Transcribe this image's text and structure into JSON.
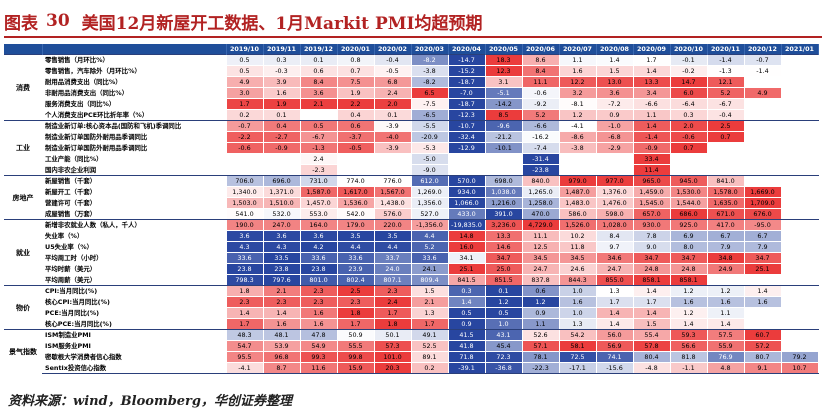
{
  "title": {
    "prefix": "图表",
    "number": "30",
    "text": "美国12月新屋开工数据、1月Markit PMI均超预期"
  },
  "colors": {
    "header": "#1f4e9a",
    "accent": "#b22222"
  },
  "columns": [
    "2019/10",
    "2019/11",
    "2019/12",
    "2020/01",
    "2020/02",
    "2020/03",
    "2020/04",
    "2020/05",
    "2020/06",
    "2020/07",
    "2020/08",
    "2020/09",
    "2020/10",
    "2020/11",
    "2020/12",
    "2021/01"
  ],
  "groups": [
    {
      "name": "消费",
      "rows": [
        {
          "label": "零售销售（月环比%）",
          "values": [
            "0.5",
            "0.3",
            "0.1",
            "0.8",
            "-0.4",
            "-8.2",
            "-14.7",
            "18.3",
            "8.6",
            "1.1",
            "1.4",
            "1.7",
            "-0.1",
            "-1.4",
            "-0.7",
            ""
          ]
        },
        {
          "label": "零售销售，汽车除外（月环比%）",
          "values": [
            "0.5",
            "-0.3",
            "0.6",
            "0.7",
            "-0.5",
            "-3.8",
            "-15.2",
            "12.3",
            "8.4",
            "1.6",
            "1.5",
            "1.4",
            "-0.2",
            "-1.3",
            "-1.4",
            ""
          ]
        },
        {
          "label": "耐用品消费支出（同比%）",
          "values": [
            "4.9",
            "3.9",
            "8.4",
            "7.5",
            "6.8",
            "-8.2",
            "-18.7",
            "3.1",
            "11.1",
            "12.2",
            "13.0",
            "13.3",
            "14.7",
            "12.1",
            "",
            ""
          ]
        },
        {
          "label": "非耐用品消费支出（同比%）",
          "values": [
            "3.0",
            "1.6",
            "3.6",
            "1.9",
            "2.4",
            "6.5",
            "-7.0",
            "-5.1",
            "-0.6",
            "3.2",
            "3.6",
            "3.4",
            "6.0",
            "5.2",
            "4.9",
            ""
          ]
        },
        {
          "label": "服务消费支出（同比%）",
          "values": [
            "1.7",
            "1.9",
            "2.1",
            "2.2",
            "2.0",
            "-7.5",
            "-18.7",
            "-14.2",
            "-9.2",
            "-8.1",
            "-7.2",
            "-6.6",
            "-6.4",
            "-6.7",
            "",
            ""
          ]
        },
        {
          "label": "个人消费支出PCE环比折年率（%）",
          "values": [
            "0.2",
            "0.1",
            "",
            "0.4",
            "0.1",
            "-6.5",
            "-12.3",
            "8.5",
            "5.2",
            "1.2",
            "0.9",
            "1.1",
            "0.3",
            "-0.4",
            "",
            ""
          ]
        }
      ]
    },
    {
      "name": "工业",
      "rows": [
        {
          "label": "制造业新订单:核心资本品(国防和飞机)季调同比",
          "values": [
            "-0.7",
            "0.4",
            "0.5",
            "0.6",
            "-3.9",
            "-5.5",
            "-10.7",
            "-9.6",
            "-6.6",
            "-4.1",
            "-1.0",
            "1.4",
            "2.0",
            "2.5",
            "",
            ""
          ]
        },
        {
          "label": "制造业新订单国防外耐用品季调同比",
          "values": [
            "-2.2",
            "-2.7",
            "-6.7",
            "-3.7",
            "-4.0",
            "-20.9",
            "-32.4",
            "-21.2",
            "-16.2",
            "-8.6",
            "-6.8",
            "-1.4",
            "-0.6",
            "0.7",
            "",
            ""
          ]
        },
        {
          "label": "制造业新订单国防外耐用品季调同比",
          "values": [
            "-0.6",
            "-0.9",
            "-1.3",
            "-0.5",
            "-3.9",
            "-5.3",
            "-12.9",
            "-10.1",
            "-7.4",
            "-3.8",
            "-2.9",
            "-0.9",
            "0.7",
            "",
            "",
            ""
          ]
        },
        {
          "label": "工业产能（同比%）",
          "values": [
            "",
            "",
            "2.4",
            "",
            "",
            "-5.0",
            "",
            "",
            "-31.4",
            "",
            "",
            "33.4",
            "",
            "",
            "",
            ""
          ]
        },
        {
          "label": "国内非农企业利润",
          "values": [
            "",
            "",
            "-2.3",
            "",
            "",
            "-9.0",
            "",
            "",
            "-23.8",
            "",
            "",
            "11.4",
            "",
            "",
            "",
            ""
          ]
        }
      ]
    },
    {
      "name": "房地产",
      "rows": [
        {
          "label": "新屋销售（千套）",
          "values": [
            "706.0",
            "696.0",
            "731.0",
            "774.0",
            "776.0",
            "612.0",
            "570.0",
            "698.0",
            "840.0",
            "979.0",
            "977.0",
            "965.0",
            "945.0",
            "841.0",
            "",
            ""
          ]
        },
        {
          "label": "新屋开工（千套）",
          "values": [
            "1,340.0",
            "1,371.0",
            "1,587.0",
            "1,617.0",
            "1,567.0",
            "1,269.0",
            "934.0",
            "1,038.0",
            "1,265.0",
            "1,487.0",
            "1,376.0",
            "1,459.0",
            "1,530.0",
            "1,578.0",
            "1,669.0",
            ""
          ]
        },
        {
          "label": "营建许可（千套）",
          "values": [
            "1,503.0",
            "1,510.0",
            "1,457.0",
            "1,536.0",
            "1,438.0",
            "1,356.0",
            "1,066.0",
            "1,216.0",
            "1,258.0",
            "1,483.0",
            "1,476.0",
            "1,545.0",
            "1,544.0",
            "1,635.0",
            "1,709.0",
            ""
          ]
        },
        {
          "label": "成屋销售（万套）",
          "values": [
            "541.0",
            "532.0",
            "553.0",
            "542.0",
            "576.0",
            "527.0",
            "433.0",
            "391.0",
            "470.0",
            "586.0",
            "598.0",
            "657.0",
            "686.0",
            "671.0",
            "676.0",
            ""
          ]
        }
      ]
    },
    {
      "name": "就业",
      "rows": [
        {
          "label": "新增非农就业人数（私人，千人）",
          "values": [
            "190.0",
            "247.0",
            "164.0",
            "179.0",
            "220.0",
            "-1,356.0",
            "-19,835.0",
            "3,236.0",
            "4,729.0",
            "1,526.0",
            "1,028.0",
            "930.0",
            "925.0",
            "417.0",
            "-95.0",
            ""
          ]
        },
        {
          "label": "失业率（%）",
          "values": [
            "3.6",
            "3.6",
            "3.6",
            "3.5",
            "3.5",
            "4.4",
            "14.8",
            "13.3",
            "11.1",
            "10.2",
            "8.4",
            "7.8",
            "6.9",
            "6.7",
            "6.7",
            ""
          ]
        },
        {
          "label": "U5失业率（%）",
          "values": [
            "4.3",
            "4.3",
            "4.2",
            "4.4",
            "4.4",
            "5.2",
            "16.0",
            "14.6",
            "12.5",
            "11.8",
            "9.7",
            "9.0",
            "8.0",
            "7.9",
            "7.9",
            ""
          ]
        },
        {
          "label": "平均周工时（小时）",
          "values": [
            "33.6",
            "33.5",
            "33.6",
            "33.6",
            "33.7",
            "33.6",
            "34.1",
            "34.7",
            "34.5",
            "34.5",
            "34.6",
            "34.7",
            "34.7",
            "34.8",
            "34.7",
            ""
          ]
        },
        {
          "label": "平均时薪（美元）",
          "values": [
            "23.8",
            "23.8",
            "23.8",
            "23.9",
            "24.0",
            "24.1",
            "25.1",
            "25.0",
            "24.7",
            "24.6",
            "24.7",
            "24.8",
            "24.8",
            "24.9",
            "25.1",
            ""
          ]
        },
        {
          "label": "平均周薪（美元）",
          "values": [
            "798.3",
            "797.6",
            "801.0",
            "802.4",
            "807.1",
            "809.4",
            "841.5",
            "851.5",
            "837.8",
            "844.3",
            "855.0",
            "858.1",
            "858.1",
            "",
            "",
            ""
          ]
        }
      ]
    },
    {
      "name": "物价",
      "rows": [
        {
          "label": "CPI:当月同比(%)",
          "values": [
            "1.8",
            "2.1",
            "2.3",
            "2.5",
            "2.3",
            "1.5",
            "0.3",
            "0.1",
            "0.6",
            "1.0",
            "1.3",
            "1.4",
            "1.2",
            "1.2",
            "1.4",
            ""
          ]
        },
        {
          "label": "核心CPI:当月同比(%)",
          "values": [
            "2.3",
            "2.3",
            "2.3",
            "2.3",
            "2.4",
            "2.1",
            "1.4",
            "1.2",
            "1.2",
            "1.6",
            "1.7",
            "1.7",
            "1.6",
            "1.6",
            "1.6",
            ""
          ]
        },
        {
          "label": "PCE:当月同比(%)",
          "values": [
            "1.4",
            "1.4",
            "1.6",
            "1.8",
            "1.7",
            "1.3",
            "0.5",
            "0.5",
            "0.9",
            "1.0",
            "1.4",
            "1.4",
            "1.2",
            "1.1",
            "",
            ""
          ]
        },
        {
          "label": "核心PCE:当月同比(%)",
          "values": [
            "1.7",
            "1.6",
            "1.6",
            "1.7",
            "1.8",
            "1.7",
            "0.9",
            "1.0",
            "1.1",
            "1.3",
            "1.4",
            "1.5",
            "1.4",
            "1.4",
            "",
            ""
          ]
        }
      ]
    },
    {
      "name": "景气指数",
      "rows": [
        {
          "label": "ISM制造业PMI",
          "values": [
            "48.3",
            "48.1",
            "47.8",
            "50.9",
            "50.1",
            "49.1",
            "41.5",
            "43.1",
            "52.6",
            "54.2",
            "56.0",
            "55.4",
            "59.3",
            "57.5",
            "60.7",
            ""
          ]
        },
        {
          "label": "ISM服务业PMI",
          "values": [
            "54.7",
            "53.9",
            "54.9",
            "55.5",
            "57.3",
            "52.5",
            "41.8",
            "45.4",
            "57.1",
            "58.1",
            "56.9",
            "57.8",
            "56.6",
            "55.9",
            "57.2",
            ""
          ]
        },
        {
          "label": "密歇根大学消费者信心指数",
          "values": [
            "95.5",
            "96.8",
            "99.3",
            "99.8",
            "101.0",
            "89.1",
            "71.8",
            "72.3",
            "78.1",
            "72.5",
            "74.1",
            "80.4",
            "81.8",
            "76.9",
            "80.7",
            "79.2"
          ]
        },
        {
          "label": "Sentix投资信心指数",
          "values": [
            "-4.1",
            "8.7",
            "11.6",
            "15.9",
            "20.3",
            "0.2",
            "-39.1",
            "-36.8",
            "-22.3",
            "-17.1",
            "-15.6",
            "-4.8",
            "-1.1",
            "4.8",
            "9.1",
            "10.7"
          ]
        }
      ]
    }
  ],
  "source": "资料来源：wind，Bloomberg，华创证券整理"
}
